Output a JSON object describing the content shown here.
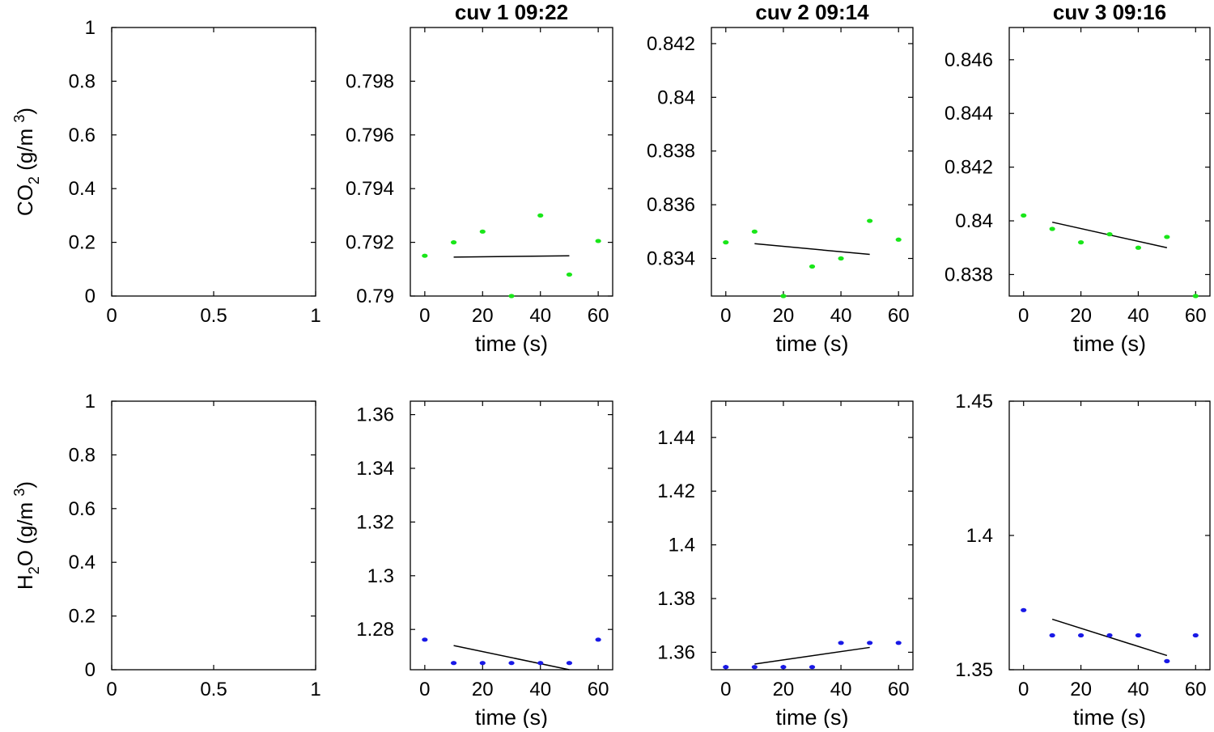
{
  "chart_data": [
    {
      "id": "co2-empty",
      "type": "scatter",
      "title": "",
      "ylabel": {
        "prefix": "CO",
        "sub": "2",
        "mid": " (g/m ",
        "sup": "3",
        "suffix": ")"
      },
      "xlabel": "",
      "xlim": [
        0,
        1
      ],
      "ylim": [
        0,
        1
      ],
      "xticks": [
        0,
        0.5,
        1
      ],
      "xtick_labels": [
        "0",
        "0.5",
        "1"
      ],
      "yticks": [
        0,
        0.2,
        0.4,
        0.6,
        0.8,
        1
      ],
      "ytick_labels": [
        "0",
        "0.2",
        "0.4",
        "0.6",
        "0.8",
        "1"
      ],
      "points": [],
      "fit": null,
      "color": "#000000"
    },
    {
      "id": "co2-cuv1",
      "type": "scatter",
      "title": "cuv 1 09:22",
      "xlabel": "time (s)",
      "xlim": [
        -5,
        65
      ],
      "ylim": [
        0.79,
        0.8
      ],
      "xticks": [
        0,
        20,
        40,
        60
      ],
      "xtick_labels": [
        "0",
        "20",
        "40",
        "60"
      ],
      "yticks": [
        0.79,
        0.792,
        0.794,
        0.796,
        0.798
      ],
      "ytick_labels": [
        "0.79",
        "0.792",
        "0.794",
        "0.796",
        "0.798"
      ],
      "points": [
        [
          0,
          0.7915
        ],
        [
          10,
          0.792
        ],
        [
          20,
          0.7924
        ],
        [
          30,
          0.79
        ],
        [
          40,
          0.793
        ],
        [
          50,
          0.7908
        ],
        [
          60,
          0.79205
        ]
      ],
      "fit": [
        [
          10,
          0.79145
        ],
        [
          50,
          0.7915
        ]
      ],
      "color": "#19e619"
    },
    {
      "id": "co2-cuv2",
      "type": "scatter",
      "title": "cuv 2 09:14",
      "xlabel": "time (s)",
      "xlim": [
        -5,
        65
      ],
      "ylim": [
        0.8326,
        0.8426
      ],
      "xticks": [
        0,
        20,
        40,
        60
      ],
      "xtick_labels": [
        "0",
        "20",
        "40",
        "60"
      ],
      "yticks": [
        0.834,
        0.836,
        0.838,
        0.84,
        0.842
      ],
      "ytick_labels": [
        "0.834",
        "0.836",
        "0.838",
        "0.84",
        "0.842"
      ],
      "points": [
        [
          0,
          0.8346
        ],
        [
          10,
          0.835
        ],
        [
          20,
          0.8326
        ],
        [
          30,
          0.8337
        ],
        [
          40,
          0.834
        ],
        [
          50,
          0.8354
        ],
        [
          60,
          0.8347
        ]
      ],
      "fit": [
        [
          10,
          0.83455
        ],
        [
          50,
          0.83415
        ]
      ],
      "color": "#19e619"
    },
    {
      "id": "co2-cuv3",
      "type": "scatter",
      "title": "cuv 3 09:16",
      "xlabel": "time (s)",
      "xlim": [
        -5,
        65
      ],
      "ylim": [
        0.8372,
        0.8472
      ],
      "xticks": [
        0,
        20,
        40,
        60
      ],
      "xtick_labels": [
        "0",
        "20",
        "40",
        "60"
      ],
      "yticks": [
        0.838,
        0.84,
        0.842,
        0.844,
        0.846
      ],
      "ytick_labels": [
        "0.838",
        "0.84",
        "0.842",
        "0.844",
        "0.846"
      ],
      "points": [
        [
          0,
          0.8402
        ],
        [
          10,
          0.8397
        ],
        [
          20,
          0.8392
        ],
        [
          30,
          0.8395
        ],
        [
          40,
          0.839
        ],
        [
          50,
          0.8394
        ],
        [
          60,
          0.8372
        ]
      ],
      "fit": [
        [
          10,
          0.83995
        ],
        [
          50,
          0.839
        ]
      ],
      "color": "#19e619"
    },
    {
      "id": "h2o-empty",
      "type": "scatter",
      "title": "",
      "ylabel": {
        "prefix": "H",
        "sub": "2",
        "mid": "O (g/m ",
        "sup": "3",
        "suffix": ")"
      },
      "xlabel": "",
      "xlim": [
        0,
        1
      ],
      "ylim": [
        0,
        1
      ],
      "xticks": [
        0,
        0.5,
        1
      ],
      "xtick_labels": [
        "0",
        "0.5",
        "1"
      ],
      "yticks": [
        0,
        0.2,
        0.4,
        0.6,
        0.8,
        1
      ],
      "ytick_labels": [
        "0",
        "0.2",
        "0.4",
        "0.6",
        "0.8",
        "1"
      ],
      "points": [],
      "fit": null,
      "color": "#000000"
    },
    {
      "id": "h2o-cuv1",
      "type": "scatter",
      "title": "",
      "xlabel": "time (s)",
      "xlim": [
        -5,
        65
      ],
      "ylim": [
        1.265,
        1.365
      ],
      "xticks": [
        0,
        20,
        40,
        60
      ],
      "xtick_labels": [
        "0",
        "20",
        "40",
        "60"
      ],
      "yticks": [
        1.28,
        1.3,
        1.32,
        1.34,
        1.36
      ],
      "ytick_labels": [
        "1.28",
        "1.3",
        "1.32",
        "1.34",
        "1.36"
      ],
      "points": [
        [
          0,
          1.2762
        ],
        [
          10,
          1.2675
        ],
        [
          20,
          1.2675
        ],
        [
          30,
          1.2675
        ],
        [
          40,
          1.2675
        ],
        [
          50,
          1.2675
        ],
        [
          60,
          1.2762
        ]
      ],
      "fit": [
        [
          10,
          1.274
        ],
        [
          50,
          1.265
        ]
      ],
      "color": "#1919e6"
    },
    {
      "id": "h2o-cuv2",
      "type": "scatter",
      "title": "",
      "xlabel": "time (s)",
      "xlim": [
        -5,
        65
      ],
      "ylim": [
        1.3535,
        1.4535
      ],
      "xticks": [
        0,
        20,
        40,
        60
      ],
      "xtick_labels": [
        "0",
        "20",
        "40",
        "60"
      ],
      "yticks": [
        1.36,
        1.38,
        1.4,
        1.42,
        1.44
      ],
      "ytick_labels": [
        "1.36",
        "1.38",
        "1.4",
        "1.42",
        "1.44"
      ],
      "points": [
        [
          0,
          1.3545
        ],
        [
          10,
          1.3545
        ],
        [
          20,
          1.3545
        ],
        [
          30,
          1.3545
        ],
        [
          40,
          1.3635
        ],
        [
          50,
          1.3635
        ],
        [
          60,
          1.3635
        ]
      ],
      "fit": [
        [
          10,
          1.3556
        ],
        [
          50,
          1.3618
        ]
      ],
      "color": "#1919e6"
    },
    {
      "id": "h2o-cuv3",
      "type": "scatter",
      "title": "",
      "xlabel": "time (s)",
      "xlim": [
        -5,
        65
      ],
      "ylim": [
        1.35,
        1.45
      ],
      "xticks": [
        0,
        20,
        40,
        60
      ],
      "xtick_labels": [
        "0",
        "20",
        "40",
        "60"
      ],
      "yticks": [
        1.35,
        1.4,
        1.45
      ],
      "ytick_labels": [
        "1.35",
        "1.4",
        "1.45"
      ],
      "points": [
        [
          0,
          1.3722
        ],
        [
          10,
          1.3628
        ],
        [
          20,
          1.3628
        ],
        [
          30,
          1.3628
        ],
        [
          40,
          1.3628
        ],
        [
          50,
          1.3532
        ],
        [
          60,
          1.3628
        ]
      ],
      "fit": [
        [
          10,
          1.3688
        ],
        [
          50,
          1.3553
        ]
      ],
      "color": "#1919e6"
    }
  ]
}
